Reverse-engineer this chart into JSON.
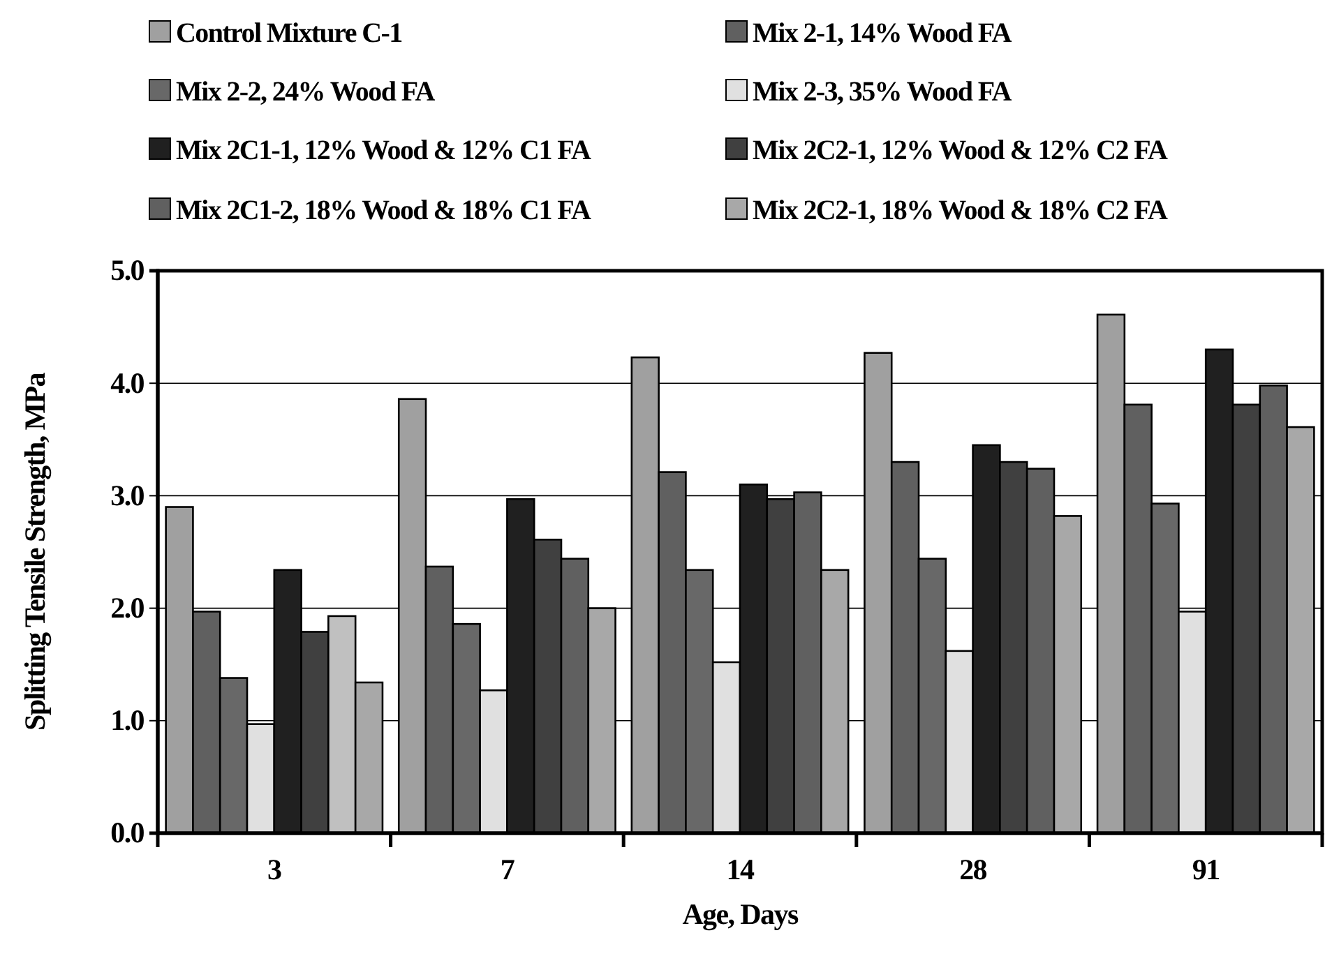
{
  "chart_data": {
    "type": "bar",
    "xlabel": "Age, Days",
    "ylabel": "Splitting Tensile Strength, MPa",
    "categories": [
      "3",
      "7",
      "14",
      "28",
      "91"
    ],
    "ylim": [
      0,
      5
    ],
    "yticks": [
      {
        "value": 0,
        "label": "0.0"
      },
      {
        "value": 1,
        "label": "1.0"
      },
      {
        "value": 2,
        "label": "2.0"
      },
      {
        "value": 3,
        "label": "3.0"
      },
      {
        "value": 4,
        "label": "4.0"
      },
      {
        "value": 5,
        "label": "5.0"
      }
    ],
    "grid": "y",
    "legend": "top",
    "series": [
      {
        "name": "Control Mixture C-1",
        "color": "#a0a0a0",
        "values": [
          2.9,
          3.86,
          4.23,
          4.27,
          4.61
        ]
      },
      {
        "name": "Mix 2-1, 14% Wood FA",
        "color": "#606060",
        "values": [
          1.97,
          2.37,
          3.21,
          3.3,
          3.81
        ]
      },
      {
        "name": "Mix 2-2, 24% Wood FA",
        "color": "#686868",
        "values": [
          1.38,
          1.86,
          2.34,
          2.44,
          2.93
        ]
      },
      {
        "name": "Mix 2-3, 35% Wood FA",
        "color": "#e0e0e0",
        "values": [
          0.97,
          1.27,
          1.52,
          1.62,
          1.97
        ]
      },
      {
        "name": "Mix 2C1-1, 12% Wood & 12% C1 FA",
        "color": "#202020",
        "values": [
          2.34,
          2.97,
          3.1,
          3.45,
          4.3
        ]
      },
      {
        "name": "Mix 2C2-1, 12% Wood & 12% C2 FA",
        "color": "#404040",
        "values": [
          1.79,
          2.61,
          2.97,
          3.3,
          3.81
        ]
      },
      {
        "name": "Mix 2C1-2, 18% Wood & 18% C1 FA",
        "color": "#606060",
        "colors": [
          "#c0c0c0",
          "#606060",
          "#606060",
          "#606060",
          "#606060"
        ],
        "values": [
          1.93,
          2.44,
          3.03,
          3.24,
          3.98
        ]
      },
      {
        "name": "Mix 2C2-1, 18% Wood & 18% C2 FA",
        "color": "#a8a8a8",
        "values": [
          1.34,
          2.0,
          2.34,
          2.82,
          3.61
        ]
      }
    ]
  }
}
